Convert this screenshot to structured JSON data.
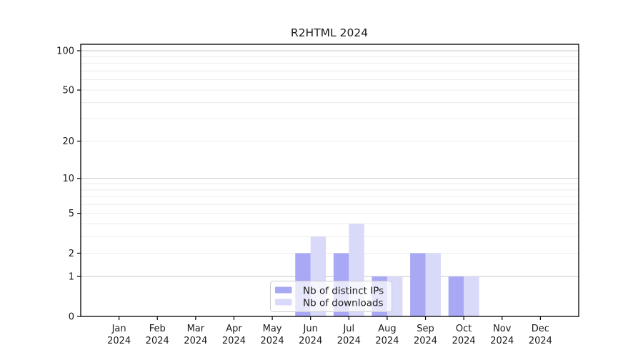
{
  "chart_data": {
    "type": "bar",
    "title": "R2HTML 2024",
    "categories": [
      "Jan",
      "Feb",
      "Mar",
      "Apr",
      "May",
      "Jun",
      "Jul",
      "Aug",
      "Sep",
      "Oct",
      "Nov",
      "Dec"
    ],
    "year_label": "2024",
    "series": [
      {
        "name": "Nb of distinct IPs",
        "color": "#a8a8f5",
        "values": [
          0,
          0,
          0,
          0,
          0,
          2,
          2,
          1,
          2,
          1,
          0,
          0
        ]
      },
      {
        "name": "Nb of downloads",
        "color": "#d9d9fa",
        "values": [
          0,
          0,
          0,
          0,
          0,
          3,
          4,
          1,
          2,
          1,
          0,
          0
        ]
      }
    ],
    "y_axis": {
      "scale": "log10(value+1)",
      "tick_values": [
        0,
        1,
        2,
        5,
        10,
        20,
        50,
        100
      ],
      "major_grid_values": [
        1,
        10,
        100
      ],
      "minor_grid_values": [
        2,
        3,
        4,
        5,
        6,
        7,
        8,
        9,
        20,
        30,
        40,
        50,
        60,
        70,
        80,
        90
      ],
      "ylim": [
        0,
        100
      ]
    },
    "xlabel": "",
    "ylabel": "",
    "grid": "horizontal",
    "legend": {
      "position": "inside-bottom-center",
      "entries": [
        "Nb of distinct IPs",
        "Nb of downloads"
      ]
    },
    "colors": {
      "axis": "#000000",
      "major_grid": "#c6c6c6",
      "minor_grid": "#ececec",
      "background": "#ffffff",
      "legend_border": "#cccccc",
      "legend_background": "rgba(255,255,255,0.72)"
    }
  }
}
